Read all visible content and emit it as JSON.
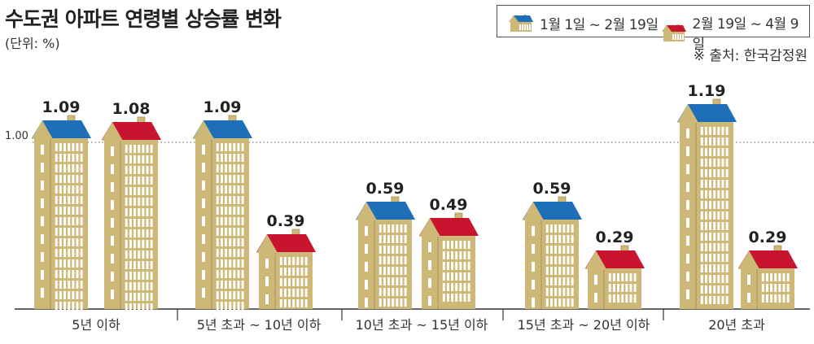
{
  "chart_data": {
    "type": "bar",
    "title": "수도권 아파트 연령별 상승률 변화",
    "unit": "(단위: %)",
    "source": "※ 출처: 한국감정원",
    "categories": [
      "5년 이하",
      "5년 초과 ~ 10년 이하",
      "10년 초과 ~ 15년 이하",
      "15년 초과 ~ 20년 이하",
      "20년 초과"
    ],
    "series": [
      {
        "name": "1월 1일 ~ 2월 19일",
        "color": "#1f6fb8",
        "values": [
          1.09,
          1.09,
          0.59,
          0.59,
          1.19
        ]
      },
      {
        "name": "2월 19일 ~ 4월 9일",
        "color": "#c8142e",
        "values": [
          1.08,
          0.39,
          0.49,
          0.29,
          0.29
        ]
      }
    ],
    "reference_line": {
      "value": 1.0,
      "label": "1.00"
    },
    "ylim": [
      0,
      1.25
    ],
    "building_color": "#cdb878"
  }
}
